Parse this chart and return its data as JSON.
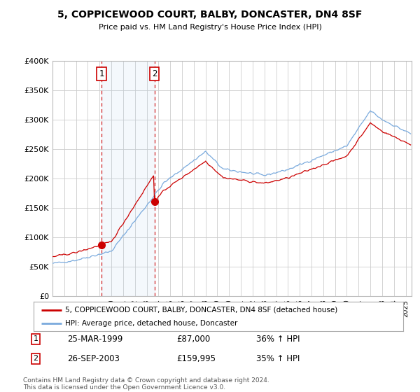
{
  "title": "5, COPPICEWOOD COURT, BALBY, DONCASTER, DN4 8SF",
  "subtitle": "Price paid vs. HM Land Registry's House Price Index (HPI)",
  "legend_line1": "5, COPPICEWOOD COURT, BALBY, DONCASTER, DN4 8SF (detached house)",
  "legend_line2": "HPI: Average price, detached house, Doncaster",
  "footer": "Contains HM Land Registry data © Crown copyright and database right 2024.\nThis data is licensed under the Open Government Licence v3.0.",
  "purchase1_date": "25-MAR-1999",
  "purchase1_price": 87000,
  "purchase1_hpi": "36% ↑ HPI",
  "purchase2_date": "26-SEP-2003",
  "purchase2_price": 159995,
  "purchase2_hpi": "35% ↑ HPI",
  "property_color": "#cc0000",
  "hpi_color": "#7aaadd",
  "vline_color": "#cc0000",
  "background_color": "#ffffff",
  "grid_color": "#cccccc",
  "ylim": [
    0,
    400000
  ],
  "yticks": [
    0,
    50000,
    100000,
    150000,
    200000,
    250000,
    300000,
    350000,
    400000
  ],
  "x_start_year": 1995,
  "x_end_year": 2025.5
}
